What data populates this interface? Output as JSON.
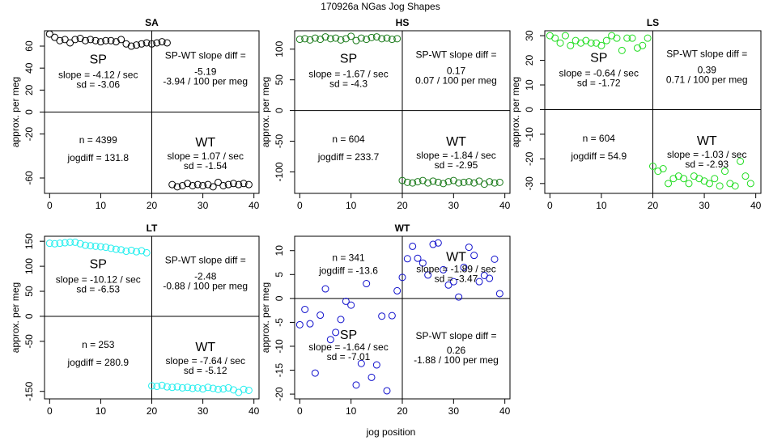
{
  "figure_title": "170926a    NGas Jog Shapes",
  "xlabel": "jog position",
  "ylabel": "approx. per meg",
  "chart_data": [
    {
      "type": "scatter",
      "title": "SA",
      "color": "#000000",
      "xlim": [
        -1,
        41
      ],
      "ylim": [
        -74,
        74
      ],
      "xticks": [
        0,
        10,
        20,
        30,
        40
      ],
      "yticks": [
        -60,
        -20,
        0,
        20,
        40,
        60
      ],
      "x": [
        0,
        1,
        2,
        3,
        4,
        5,
        6,
        7,
        8,
        9,
        10,
        11,
        12,
        13,
        14,
        15,
        16,
        17,
        18,
        19,
        20,
        21,
        22,
        23,
        24,
        25,
        26,
        27,
        28,
        29,
        30,
        31,
        32,
        33,
        34,
        35,
        36,
        37,
        38,
        39
      ],
      "y": [
        71,
        68,
        65,
        66,
        63,
        66,
        67,
        65,
        66,
        65,
        64,
        65,
        65,
        64,
        66,
        62,
        60,
        61,
        62,
        63,
        62,
        63,
        64,
        63,
        -66,
        -68,
        -67,
        -65,
        -67,
        -66,
        -67,
        -66,
        -68,
        -64,
        -67,
        -66,
        -65,
        -66,
        -65,
        -66
      ],
      "sp_label": "SP",
      "sp_slope": "slope = -4.12 / sec",
      "sp_sd": "sd = -3.06",
      "wt_label": "WT",
      "wt_slope": "slope = 1.07 / sec",
      "wt_sd": "sd = -1.54",
      "n": "n = 4399",
      "jogdiff": "jogdiff = 131.8",
      "diff_title": "SP-WT slope diff =",
      "diff_val": "-5.19",
      "diff_per": "-3.94 / 100 per meg"
    },
    {
      "type": "scatter",
      "title": "HS",
      "color": "#1a7a1a",
      "xlim": [
        -1,
        41
      ],
      "ylim": [
        -135,
        130
      ],
      "xticks": [
        0,
        10,
        20,
        30,
        40
      ],
      "yticks": [
        -100,
        -50,
        0,
        50,
        100
      ],
      "x": [
        0,
        1,
        2,
        3,
        4,
        5,
        6,
        7,
        8,
        9,
        10,
        11,
        12,
        13,
        14,
        15,
        16,
        17,
        18,
        19,
        20,
        21,
        22,
        23,
        24,
        25,
        26,
        27,
        28,
        29,
        30,
        31,
        32,
        33,
        34,
        35,
        36,
        37,
        38,
        39
      ],
      "y": [
        116,
        117,
        115,
        118,
        116,
        120,
        117,
        118,
        115,
        117,
        121,
        114,
        118,
        116,
        119,
        120,
        117,
        118,
        116,
        117,
        -114,
        -117,
        -118,
        -116,
        -114,
        -118,
        -115,
        -117,
        -119,
        -116,
        -114,
        -118,
        -117,
        -116,
        -118,
        -115,
        -120,
        -116,
        -118,
        -117
      ],
      "sp_label": "SP",
      "sp_slope": "slope = -1.67 / sec",
      "sp_sd": "sd = -4.3",
      "wt_label": "WT",
      "wt_slope": "slope = -1.84 / sec",
      "wt_sd": "sd = -2.95",
      "n": "n = 604",
      "jogdiff": "jogdiff = 233.7",
      "diff_title": "SP-WT slope diff =",
      "diff_val": "0.17",
      "diff_per": "0.07 / 100 per meg"
    },
    {
      "type": "scatter",
      "title": "LS",
      "color": "#22dd22",
      "xlim": [
        -1,
        41
      ],
      "ylim": [
        -34,
        32
      ],
      "xticks": [
        0,
        10,
        20,
        30,
        40
      ],
      "yticks": [
        -30,
        -20,
        -10,
        0,
        10,
        20,
        30
      ],
      "x": [
        0,
        1,
        2,
        3,
        4,
        5,
        6,
        7,
        8,
        9,
        10,
        11,
        12,
        13,
        14,
        15,
        16,
        17,
        18,
        19,
        20,
        21,
        22,
        23,
        24,
        25,
        26,
        27,
        28,
        29,
        30,
        31,
        32,
        33,
        34,
        35,
        36,
        37,
        38,
        39
      ],
      "y": [
        30,
        29,
        27,
        30,
        26,
        28,
        27,
        28,
        27,
        27,
        26,
        28,
        30,
        29,
        24,
        29,
        29,
        25,
        26,
        29,
        -23,
        -25,
        -24,
        -30,
        -28,
        -27,
        -28,
        -30,
        -27,
        -28,
        -29,
        -30,
        -28,
        -31,
        -25,
        -30,
        -31,
        -21,
        -27,
        -30
      ],
      "sp_label": "SP",
      "sp_slope": "slope = -0.64 / sec",
      "sp_sd": "sd = -1.72",
      "wt_label": "WT",
      "wt_slope": "slope = -1.03 / sec",
      "wt_sd": "sd = -2.93",
      "n": "n = 604",
      "jogdiff": "jogdiff = 54.9",
      "diff_title": "SP-WT slope diff =",
      "diff_val": "0.39",
      "diff_per": "0.71 / 100 per meg"
    },
    {
      "type": "scatter",
      "title": "LT",
      "color": "#22eeee",
      "xlim": [
        -1,
        41
      ],
      "ylim": [
        -165,
        160
      ],
      "xticks": [
        0,
        10,
        20,
        30,
        40
      ],
      "yticks": [
        -150,
        -50,
        0,
        50,
        100,
        150
      ],
      "x": [
        0,
        1,
        2,
        3,
        4,
        5,
        6,
        7,
        8,
        9,
        10,
        11,
        12,
        13,
        14,
        15,
        16,
        17,
        18,
        19,
        20,
        21,
        22,
        23,
        24,
        25,
        26,
        27,
        28,
        29,
        30,
        31,
        32,
        33,
        34,
        35,
        36,
        37,
        38,
        39
      ],
      "y": [
        146,
        145,
        146,
        147,
        148,
        148,
        145,
        142,
        141,
        140,
        139,
        138,
        136,
        134,
        133,
        130,
        132,
        129,
        131,
        127,
        -139,
        -140,
        -138,
        -141,
        -142,
        -141,
        -143,
        -142,
        -144,
        -143,
        -145,
        -142,
        -144,
        -146,
        -145,
        -143,
        -147,
        -152,
        -146,
        -148
      ],
      "sp_label": "SP",
      "sp_slope": "slope = -10.12 / sec",
      "sp_sd": "sd = -6.53",
      "wt_label": "WT",
      "wt_slope": "slope = -7.64 / sec",
      "wt_sd": "sd = -5.12",
      "n": "n = 253",
      "jogdiff": "jogdiff = 280.9",
      "diff_title": "SP-WT slope diff =",
      "diff_val": "-2.48",
      "diff_per": "-0.88 / 100 per meg"
    },
    {
      "type": "scatter",
      "title": "WT",
      "color": "#1010cc",
      "xlim": [
        -1,
        41
      ],
      "ylim": [
        -21,
        13
      ],
      "xticks": [
        0,
        10,
        20,
        30,
        40
      ],
      "yticks": [
        -20,
        -15,
        -10,
        -5,
        0,
        5,
        10
      ],
      "x": [
        0,
        1,
        2,
        3,
        4,
        5,
        6,
        7,
        8,
        9,
        10,
        11,
        12,
        13,
        14,
        15,
        16,
        17,
        18,
        19,
        20,
        21,
        22,
        23,
        24,
        25,
        26,
        27,
        28,
        29,
        30,
        31,
        32,
        33,
        34,
        35,
        36,
        37,
        38,
        39
      ],
      "y": [
        -5.5,
        -2.3,
        -5.3,
        -15.6,
        -3.5,
        2.0,
        -8.6,
        -7.1,
        -4.4,
        -0.6,
        -1.4,
        -18.1,
        -13.6,
        3.1,
        -16.5,
        -13.9,
        -3.7,
        -19.3,
        -3.6,
        1.6,
        4.4,
        8.3,
        10.9,
        8.4,
        7.4,
        4.9,
        11.3,
        11.6,
        6.0,
        2.8,
        3.5,
        0.3,
        6.5,
        10.7,
        9.0,
        3.5,
        4.8,
        4.2,
        8.2,
        1.0
      ],
      "sp_label": "SP",
      "sp_slope": "slope = -1.64 / sec",
      "sp_sd": "sd = -7.01",
      "wt_label": "WT",
      "wt_slope": "slope = -1.89 / sec",
      "wt_sd": "sd = -3.47",
      "n": "n = 341",
      "jogdiff": "jogdiff = -13.6",
      "diff_title": "SP-WT slope diff =",
      "diff_val": "0.26",
      "diff_per": "-1.88 / 100 per meg"
    }
  ]
}
